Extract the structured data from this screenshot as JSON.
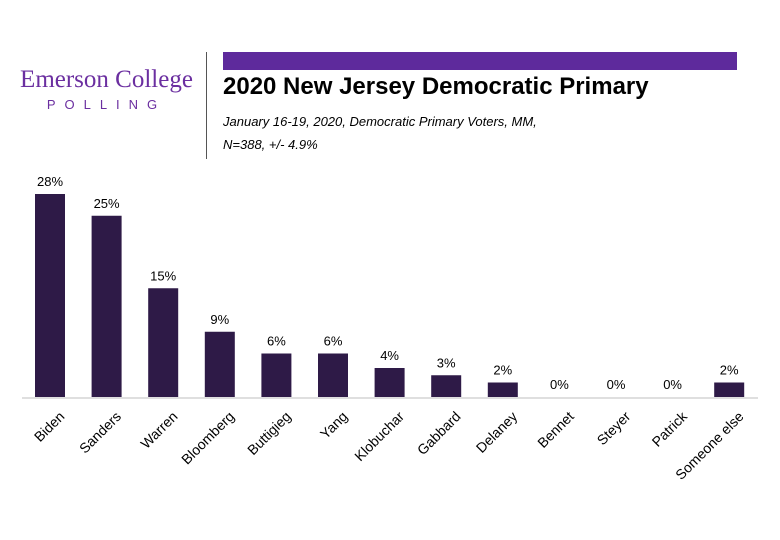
{
  "logo": {
    "line1": "Emerson College",
    "line2": "POLLING"
  },
  "header": {
    "title": "2020 New Jersey Democratic Primary",
    "subtitle_line1": "January 16-19, 2020, Democratic Primary Voters, MM,",
    "subtitle_line2": "N=388,  +/- 4.9%"
  },
  "colors": {
    "bar": "#2e1a47",
    "accent": "#5e2a9c",
    "logo": "#6b2fa0"
  },
  "chart_data": {
    "type": "bar",
    "categories": [
      "Biden",
      "Sanders",
      "Warren",
      "Bloomberg",
      "Buttigieg",
      "Yang",
      "Klobuchar",
      "Gabbard",
      "Delaney",
      "Bennet",
      "Steyer",
      "Patrick",
      "Someone else"
    ],
    "values": [
      28,
      25,
      15,
      9,
      6,
      6,
      4,
      3,
      2,
      0,
      0,
      0,
      2
    ],
    "value_labels": [
      "28%",
      "25%",
      "15%",
      "9%",
      "6%",
      "6%",
      "4%",
      "3%",
      "2%",
      "0%",
      "0%",
      "0%",
      "2%"
    ],
    "ylim": [
      0,
      28
    ],
    "grid": false,
    "legend": "none"
  }
}
